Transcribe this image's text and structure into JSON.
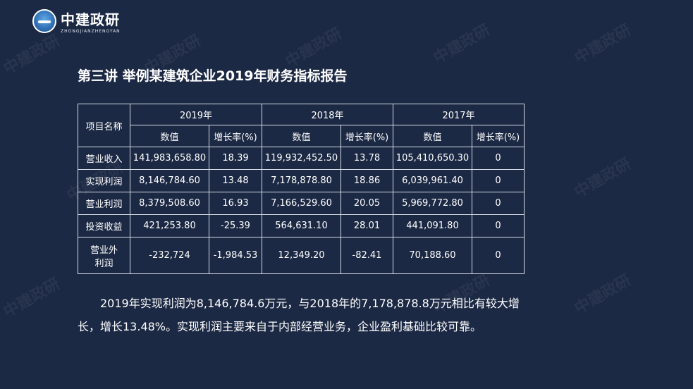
{
  "logo": {
    "name": "中建政研",
    "subtitle": "ZHONGJIANZHENGYAN"
  },
  "watermark_text": "中建政研",
  "title": "第三讲 举例某建筑企业2019年财务指标报告",
  "table": {
    "item_header": "项目名称",
    "years": [
      "2019年",
      "2018年",
      "2017年"
    ],
    "sub_headers": [
      "数值",
      "增长率(%)"
    ],
    "rows": [
      {
        "name": "营业收入",
        "cells": [
          "141,983,658.80",
          "18.39",
          "119,932,452.50",
          "13.78",
          "105,410,650.30",
          "0"
        ]
      },
      {
        "name": "实现利润",
        "cells": [
          "8,146,784.60",
          "13.48",
          "7,178,878.80",
          "18.86",
          "6,039,961.40",
          "0"
        ]
      },
      {
        "name": "营业利润",
        "cells": [
          "8,379,508.60",
          "16.93",
          "7,166,529.60",
          "20.05",
          "5,969,772.80",
          "0"
        ]
      },
      {
        "name": "投资收益",
        "cells": [
          "421,253.80",
          "-25.39",
          "564,631.10",
          "28.01",
          "441,091.80",
          "0"
        ]
      },
      {
        "name": "营业外利润",
        "cells": [
          "-232,724",
          "-1,984.53",
          "12,349.20",
          "-82.41",
          "70,188.60",
          "0"
        ]
      }
    ]
  },
  "paragraph": "2019年实现利润为8,146,784.6万元，与2018年的7,178,878.8万元相比有较大增长，增长13.48%。实现利润主要来自于内部经营业务，企业盈利基础比较可靠。"
}
